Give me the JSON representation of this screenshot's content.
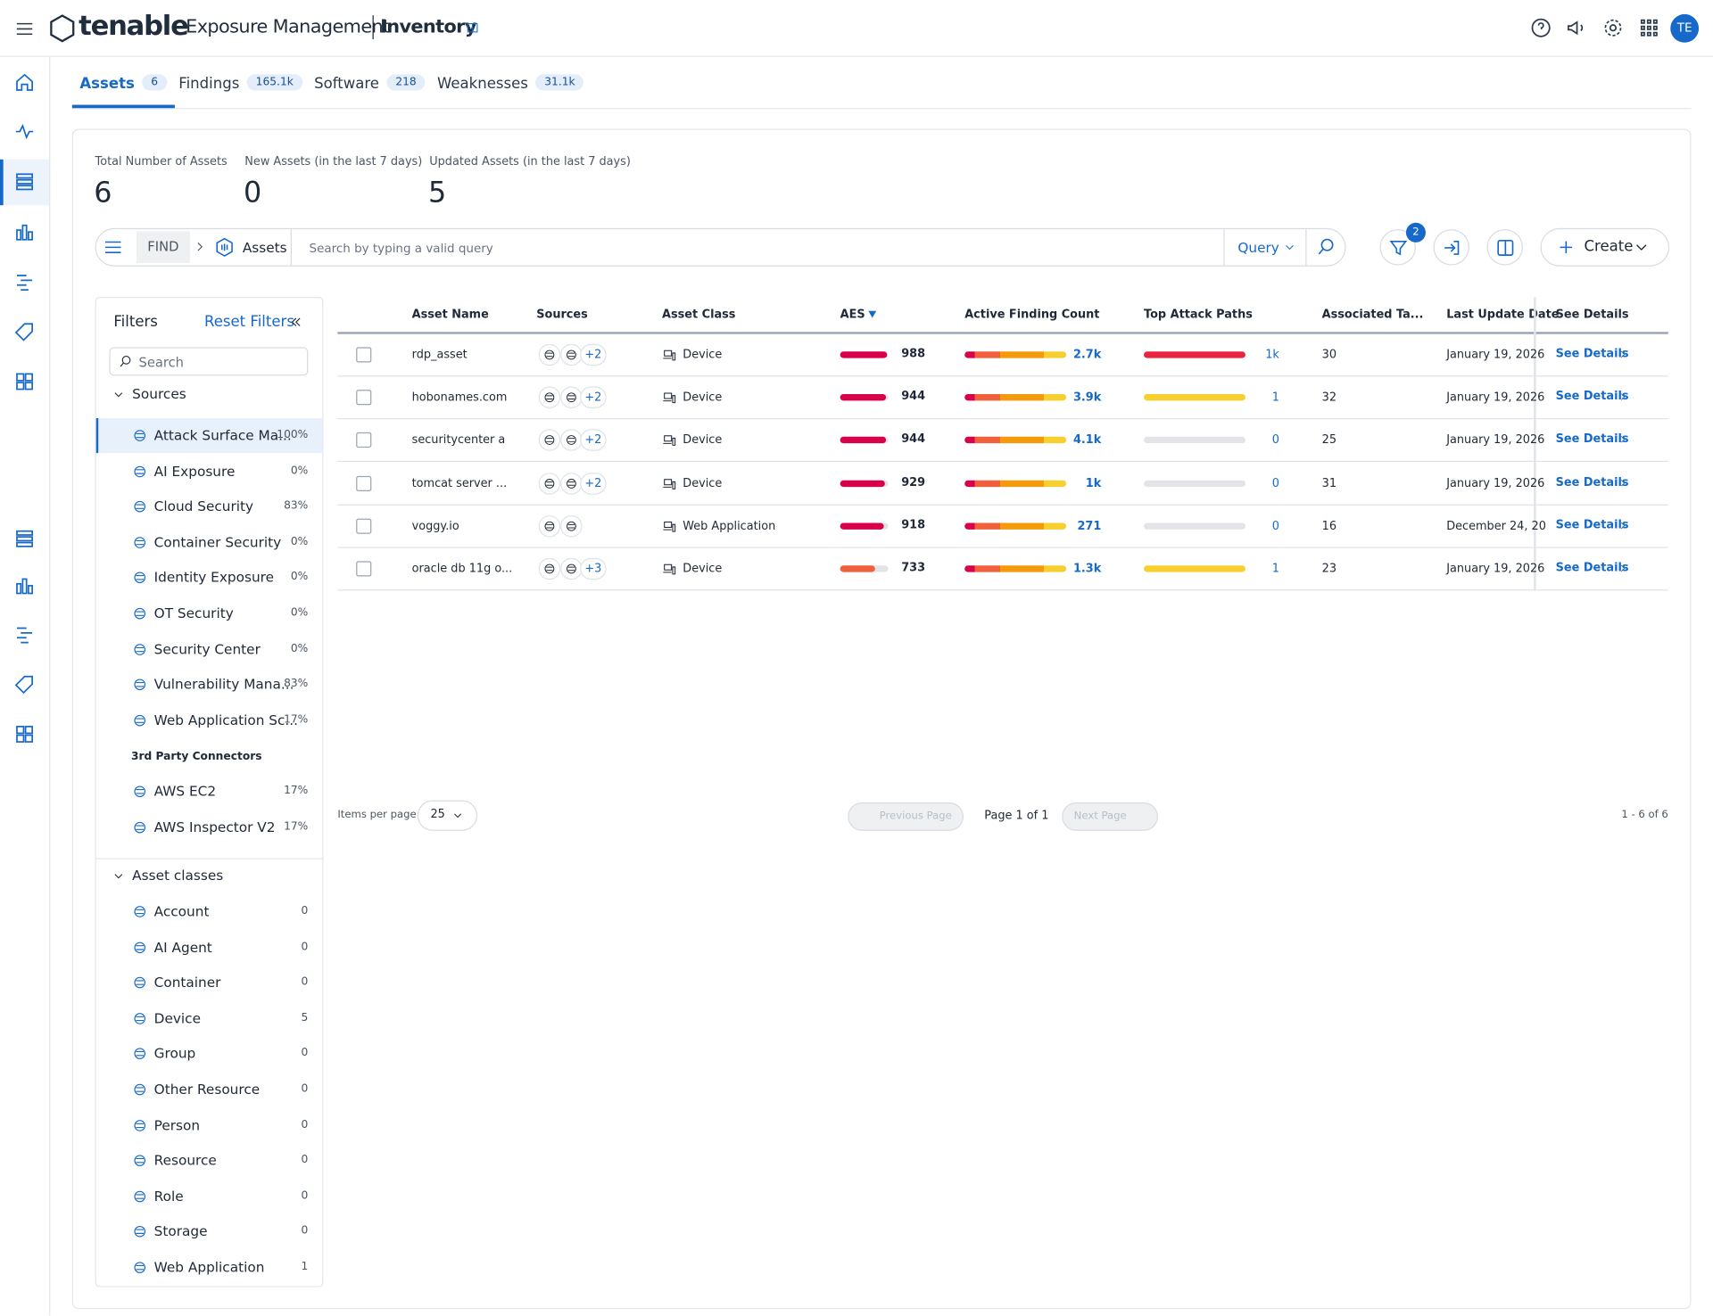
{
  "header": {
    "brand": "tenable",
    "product": "Exposure Management",
    "section": "Inventory",
    "avatar": "TE"
  },
  "tabs": [
    {
      "label": "Assets",
      "count": "6"
    },
    {
      "label": "Findings",
      "count": "165.1k"
    },
    {
      "label": "Software",
      "count": "218"
    },
    {
      "label": "Weaknesses",
      "count": "31.1k"
    }
  ],
  "summary": [
    {
      "label": "Total Number of Assets",
      "value": "6"
    },
    {
      "label": "New Assets (in the last 7 days)",
      "value": "0"
    },
    {
      "label": "Updated Assets (in the last 7 days)",
      "value": "5"
    }
  ],
  "find": {
    "find": "FIND",
    "scope": "Assets",
    "placeholder": "Search by typing a valid query",
    "query": "Query",
    "filter_badge": "2",
    "create": "Create"
  },
  "filters": {
    "title": "Filters",
    "reset": "Reset Filters",
    "search": "Search",
    "sources_title": "Sources",
    "sources": [
      {
        "name": "Attack Surface Ma...",
        "pct": "100%"
      },
      {
        "name": "AI Exposure",
        "pct": "0%"
      },
      {
        "name": "Cloud Security",
        "pct": "83%"
      },
      {
        "name": "Container Security",
        "pct": "0%"
      },
      {
        "name": "Identity Exposure",
        "pct": "0%"
      },
      {
        "name": "OT Security",
        "pct": "0%"
      },
      {
        "name": "Security Center",
        "pct": "0%"
      },
      {
        "name": "Vulnerability Mana...",
        "pct": "83%"
      },
      {
        "name": "Web Application Sc...",
        "pct": "17%"
      }
    ],
    "third_party_title": "3rd Party Connectors",
    "third_party": [
      {
        "name": "AWS EC2",
        "pct": "17%"
      },
      {
        "name": "AWS Inspector V2",
        "pct": "17%"
      }
    ],
    "classes_title": "Asset classes",
    "classes": [
      {
        "name": "Account",
        "count": "0"
      },
      {
        "name": "AI Agent",
        "count": "0"
      },
      {
        "name": "Container",
        "count": "0"
      },
      {
        "name": "Device",
        "count": "5"
      },
      {
        "name": "Group",
        "count": "0"
      },
      {
        "name": "Other Resource",
        "count": "0"
      },
      {
        "name": "Person",
        "count": "0"
      },
      {
        "name": "Resource",
        "count": "0"
      },
      {
        "name": "Role",
        "count": "0"
      },
      {
        "name": "Storage",
        "count": "0"
      },
      {
        "name": "Web Application",
        "count": "1"
      }
    ]
  },
  "table": {
    "columns": [
      "Asset Name",
      "Sources",
      "Asset Class",
      "AES",
      "Active Finding Count",
      "Top Attack Paths",
      "Associated Ta...",
      "Last Update Date",
      "See Details"
    ],
    "rows": [
      {
        "name": "rdp_asset",
        "sources_extra": "+2",
        "class": "Device",
        "aes": 988,
        "aes_color": "#d9004c",
        "findings": "2.7k",
        "paths": "1k",
        "path_color": "#e8253f",
        "tags": "30",
        "date": "January 19, 2026",
        "details": "See Details"
      },
      {
        "name": "hobonames.com",
        "sources_extra": "+2",
        "class": "Device",
        "aes": 944,
        "aes_color": "#d9004c",
        "findings": "3.9k",
        "paths": "1",
        "path_color": "#f7cf2f",
        "tags": "32",
        "date": "January 19, 2026",
        "details": "See Details"
      },
      {
        "name": "securitycenter a",
        "sources_extra": "+2",
        "class": "Device",
        "aes": 944,
        "aes_color": "#d9004c",
        "findings": "4.1k",
        "paths": "0",
        "path_color": "#e2e4e7",
        "tags": "25",
        "date": "January 19, 2026",
        "details": "See Details"
      },
      {
        "name": "tomcat server ...",
        "sources_extra": "+2",
        "class": "Device",
        "aes": 929,
        "aes_color": "#d9004c",
        "findings": "1k",
        "paths": "0",
        "path_color": "#e2e4e7",
        "tags": "31",
        "date": "January 19, 2026",
        "details": "See Details"
      },
      {
        "name": "voggy.io",
        "class": "Web Application",
        "aes": 918,
        "aes_color": "#d9004c",
        "findings": "271",
        "paths": "0",
        "path_color": "#e2e4e7",
        "tags": "16",
        "date": "December 24, 20",
        "details": "See Details"
      },
      {
        "name": "oracle db 11g o...",
        "sources_extra": "+3",
        "class": "Device",
        "aes": 733,
        "aes_color": "#f0603c",
        "findings": "1.3k",
        "paths": "1",
        "path_color": "#f7cf2f",
        "tags": "23",
        "date": "January 19, 2026",
        "details": "See Details"
      }
    ]
  },
  "pagination": {
    "items_label": "Items per page",
    "per_page": "25",
    "prev": "Previous Page",
    "page": "Page 1 of 1",
    "next": "Next Page",
    "range": "1 - 6 of 6"
  }
}
